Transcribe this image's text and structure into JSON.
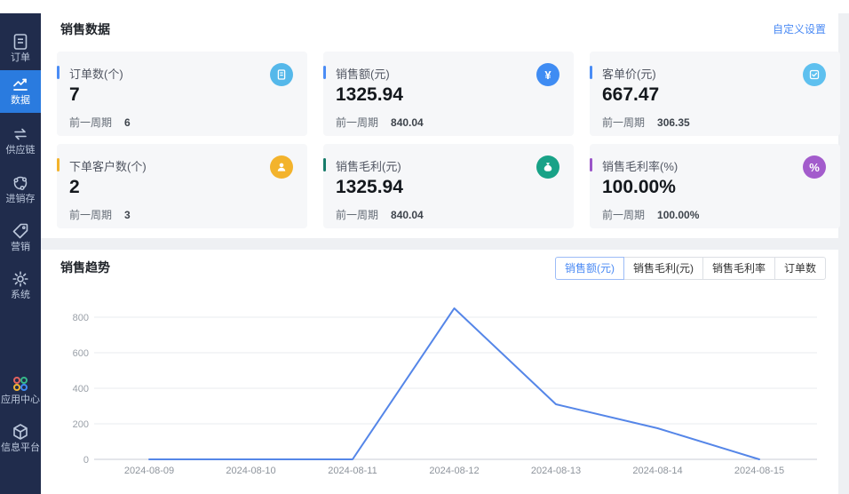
{
  "sidebar": {
    "items": [
      {
        "label": "订单",
        "icon": "order-list-icon",
        "active": false
      },
      {
        "label": "数据",
        "icon": "data-chart-icon",
        "active": true
      },
      {
        "label": "供应链",
        "icon": "supply-chain-icon",
        "active": false
      },
      {
        "label": "进销存",
        "icon": "inventory-icon",
        "active": false
      },
      {
        "label": "营销",
        "icon": "marketing-tag-icon",
        "active": false
      },
      {
        "label": "系统",
        "icon": "system-gear-icon",
        "active": false
      },
      {
        "label": "应用中心",
        "icon": "app-center-icon",
        "active": false
      },
      {
        "label": "信息平台",
        "icon": "info-platform-icon",
        "active": false
      }
    ]
  },
  "sales_data": {
    "title": "销售数据",
    "settings_link": "自定义设置",
    "prev_period_label": "前一周期",
    "cards": [
      {
        "label": "订单数(个)",
        "value": "7",
        "prev": "6",
        "accent": "#4a8cf5",
        "icon_bg": "#55b8ea",
        "glyph": "doc",
        "icon": "order-count-icon"
      },
      {
        "label": "销售额(元)",
        "value": "1325.94",
        "prev": "840.04",
        "accent": "#4a8cf5",
        "icon_bg": "#3f8cf3",
        "glyph": "yuan",
        "icon": "sales-amount-icon"
      },
      {
        "label": "客单价(元)",
        "value": "667.47",
        "prev": "306.35",
        "accent": "#4a8cf5",
        "icon_bg": "#5ec0ef",
        "glyph": "check",
        "icon": "avg-order-value-icon"
      },
      {
        "label": "下单客户数(个)",
        "value": "2",
        "prev": "3",
        "accent": "#f3b32c",
        "icon_bg": "#f3b32c",
        "glyph": "person",
        "icon": "customer-count-icon"
      },
      {
        "label": "销售毛利(元)",
        "value": "1325.94",
        "prev": "840.04",
        "accent": "#177c6a",
        "icon_bg": "#18a287",
        "glyph": "bag",
        "icon": "gross-profit-icon"
      },
      {
        "label": "销售毛利率(%)",
        "value": "100.00%",
        "prev": "100.00%",
        "accent": "#9a55c8",
        "icon_bg": "#a35ccc",
        "glyph": "percent",
        "icon": "profit-rate-icon"
      }
    ]
  },
  "trend": {
    "title": "销售趋势",
    "buttons": [
      {
        "label": "销售额(元)",
        "active": true
      },
      {
        "label": "销售毛利(元)",
        "active": false
      },
      {
        "label": "销售毛利率",
        "active": false
      },
      {
        "label": "订单数",
        "active": false
      }
    ]
  },
  "chart_data": {
    "type": "line",
    "title": "销售趋势",
    "x": [
      "2024-08-09",
      "2024-08-10",
      "2024-08-11",
      "2024-08-12",
      "2024-08-13",
      "2024-08-14",
      "2024-08-15"
    ],
    "series": [
      {
        "name": "销售额(元)",
        "values": [
          0,
          0,
          0,
          850,
          310,
          175,
          0
        ]
      }
    ],
    "yticks": [
      0,
      200,
      400,
      600,
      800
    ],
    "ylim": [
      0,
      900
    ],
    "line_color": "#5586e8",
    "grid": "horizontal",
    "legend_position": "none"
  }
}
